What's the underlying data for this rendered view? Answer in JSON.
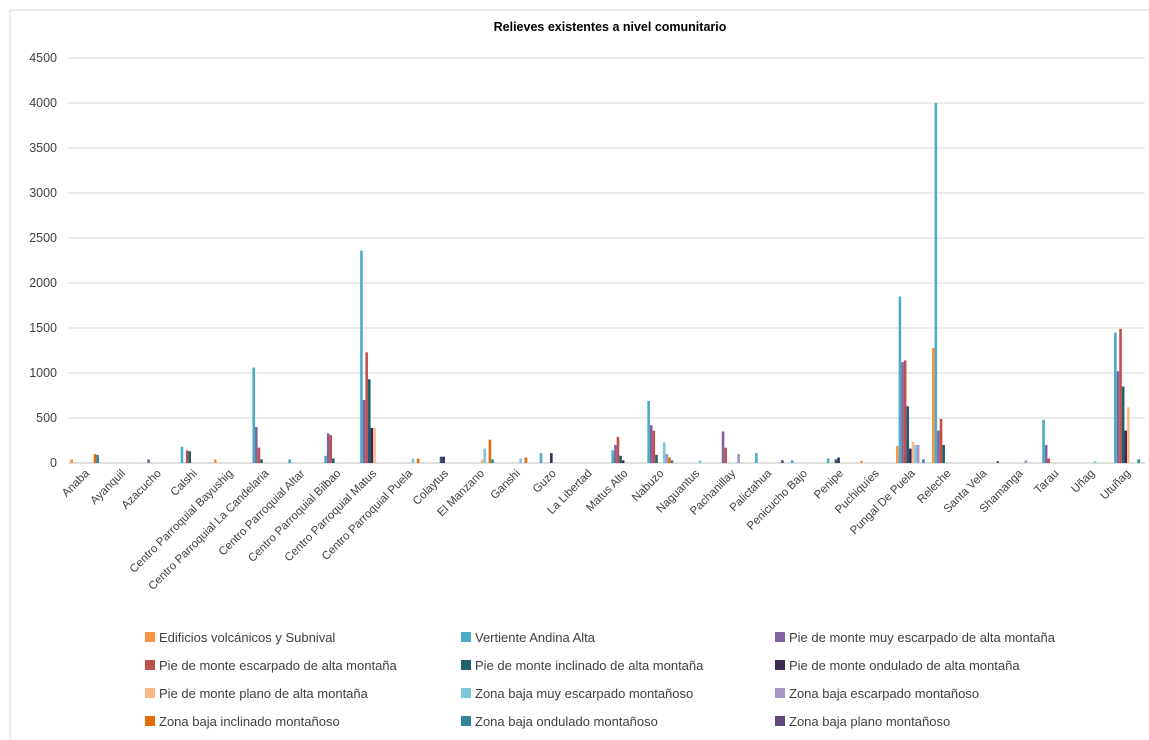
{
  "chart_data": {
    "type": "bar",
    "title": "Relieves existentes a nivel comunitario",
    "xlabel": "",
    "ylabel": "",
    "ylim": [
      0,
      4500
    ],
    "yticks": [
      0,
      500,
      1000,
      1500,
      2000,
      2500,
      3000,
      3500,
      4000,
      4500
    ],
    "grid": true,
    "legend_position": "bottom",
    "categories": [
      "Anaba",
      "Ayanquil",
      "Azacucho",
      "Calshi",
      "Centro Parroquial Bayushig",
      "Centro Parroquial La Candelaria",
      "Centro Parroquial Altar",
      "Centro Parroquial Bilbao",
      "Centro Parroquial Matus",
      "Centro Parroquial Puela",
      "Colaytus",
      "El Manzano",
      "Ganshi",
      "Guzo",
      "La Libertad",
      "Matus Alto",
      "Nabuzo",
      "Naguantus",
      "Pachanillay",
      "Palictahua",
      "Penicucho Bajo",
      "Penipe",
      "Puchiquíes",
      "Pungal De Puela",
      "Releche",
      "Santa Vela",
      "Shamanga",
      "Tarau",
      "Uñag",
      "Utuñag"
    ],
    "series": [
      {
        "name": "Edificios volcánicos y Subnival",
        "color": "#F79646",
        "values": [
          40,
          0,
          0,
          0,
          40,
          0,
          0,
          0,
          0,
          0,
          0,
          0,
          0,
          0,
          0,
          0,
          0,
          0,
          0,
          0,
          0,
          0,
          25,
          190,
          1280,
          0,
          0,
          0,
          0,
          0
        ]
      },
      {
        "name": "Vertiente Andina Alta",
        "color": "#4BACC6",
        "values": [
          0,
          0,
          0,
          180,
          0,
          1060,
          40,
          80,
          2360,
          0,
          0,
          0,
          0,
          110,
          0,
          140,
          690,
          0,
          0,
          110,
          30,
          50,
          0,
          1850,
          4000,
          0,
          0,
          480,
          0,
          1450
        ]
      },
      {
        "name": "Pie de monte muy escarpado de alta montaña",
        "color": "#8064A2",
        "values": [
          0,
          0,
          40,
          0,
          0,
          400,
          0,
          330,
          700,
          0,
          0,
          0,
          0,
          0,
          0,
          200,
          420,
          0,
          350,
          0,
          0,
          0,
          0,
          1120,
          360,
          0,
          0,
          200,
          0,
          1020
        ]
      },
      {
        "name": "Pie de monte escarpado de alta montaña",
        "color": "#C0504D",
        "values": [
          0,
          0,
          0,
          140,
          0,
          170,
          0,
          310,
          1230,
          0,
          0,
          0,
          0,
          0,
          0,
          290,
          360,
          0,
          170,
          0,
          0,
          0,
          0,
          1140,
          490,
          0,
          0,
          50,
          0,
          1490
        ]
      },
      {
        "name": "Pie de monte inclinado de alta montaña",
        "color": "#1F5F6B",
        "values": [
          0,
          0,
          0,
          130,
          0,
          40,
          0,
          50,
          930,
          0,
          70,
          0,
          0,
          0,
          0,
          80,
          90,
          0,
          0,
          0,
          0,
          40,
          0,
          630,
          200,
          0,
          0,
          0,
          0,
          850
        ]
      },
      {
        "name": "Pie de monte ondulado de alta montaña",
        "color": "#3D2B57",
        "values": [
          0,
          0,
          0,
          0,
          0,
          0,
          0,
          0,
          390,
          0,
          70,
          0,
          0,
          110,
          0,
          30,
          0,
          0,
          0,
          0,
          0,
          60,
          0,
          160,
          0,
          0,
          0,
          0,
          0,
          360
        ]
      },
      {
        "name": "Pie de monte plano de alta montaña",
        "color": "#FAB88A",
        "values": [
          0,
          0,
          0,
          0,
          0,
          0,
          0,
          0,
          390,
          0,
          0,
          40,
          0,
          0,
          0,
          0,
          0,
          0,
          0,
          0,
          0,
          0,
          0,
          240,
          0,
          0,
          0,
          0,
          0,
          620
        ]
      },
      {
        "name": "Zona baja muy escarpado montañoso",
        "color": "#7EC8DC",
        "values": [
          0,
          0,
          0,
          0,
          0,
          0,
          0,
          0,
          0,
          50,
          0,
          160,
          50,
          0,
          0,
          0,
          230,
          30,
          0,
          0,
          0,
          0,
          0,
          200,
          0,
          0,
          0,
          0,
          20,
          0
        ]
      },
      {
        "name": "Zona baja escarpado montañoso",
        "color": "#A793C6",
        "values": [
          0,
          0,
          0,
          0,
          0,
          0,
          0,
          0,
          0,
          0,
          0,
          0,
          0,
          0,
          0,
          0,
          100,
          0,
          100,
          0,
          0,
          0,
          0,
          200,
          0,
          0,
          30,
          0,
          0,
          0
        ]
      },
      {
        "name": "Zona baja inclinado montañoso",
        "color": "#E36C09",
        "values": [
          100,
          0,
          0,
          0,
          0,
          0,
          0,
          0,
          0,
          50,
          0,
          260,
          60,
          0,
          0,
          0,
          60,
          0,
          0,
          0,
          0,
          0,
          0,
          0,
          0,
          0,
          0,
          0,
          0,
          0
        ]
      },
      {
        "name": "Zona baja ondulado montañoso",
        "color": "#31859C",
        "values": [
          90,
          0,
          0,
          0,
          0,
          0,
          0,
          0,
          0,
          0,
          0,
          40,
          0,
          0,
          0,
          0,
          30,
          0,
          0,
          0,
          0,
          0,
          0,
          40,
          0,
          0,
          0,
          0,
          0,
          40
        ]
      },
      {
        "name": "Zona baja plano montañoso",
        "color": "#5F497A",
        "values": [
          0,
          0,
          0,
          0,
          0,
          0,
          0,
          0,
          0,
          0,
          0,
          0,
          0,
          0,
          0,
          0,
          0,
          0,
          0,
          30,
          0,
          0,
          0,
          0,
          0,
          20,
          0,
          0,
          0,
          0
        ]
      }
    ]
  }
}
